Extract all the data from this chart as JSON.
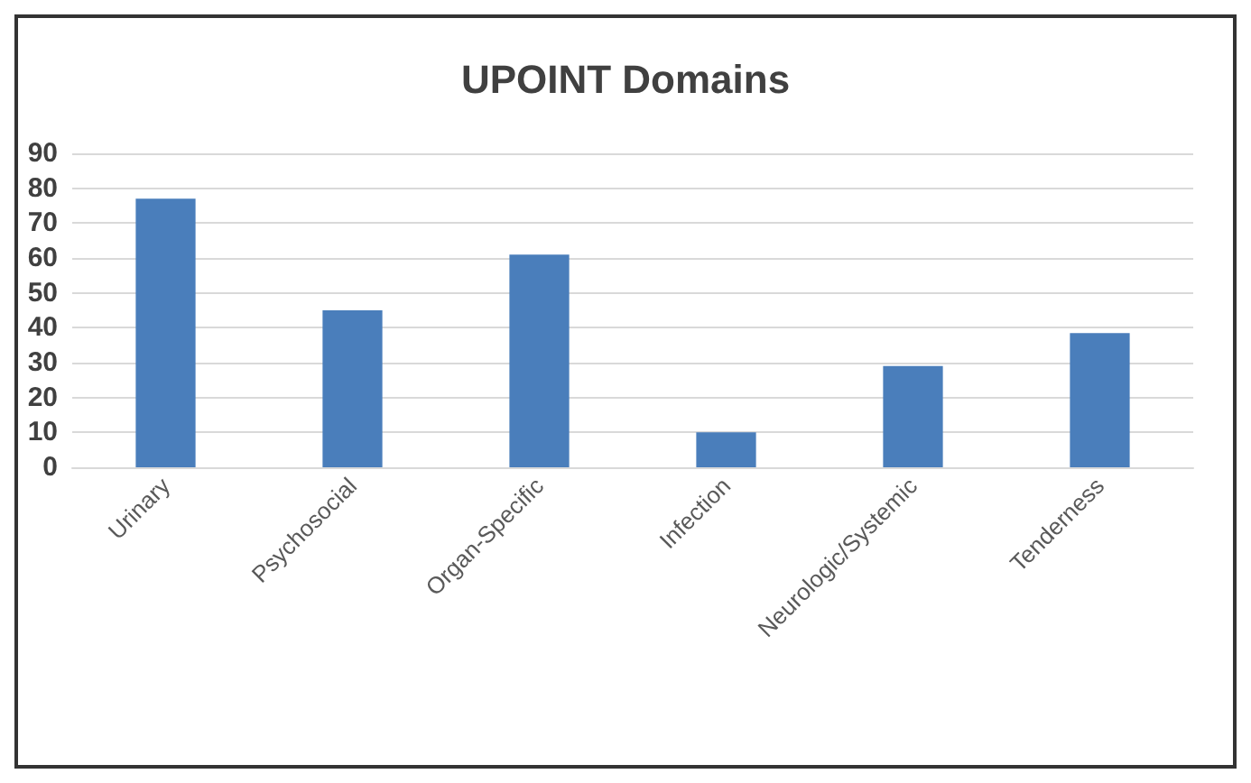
{
  "chart_data": {
    "type": "bar",
    "title": "UPOINT Domains",
    "categories": [
      "Urinary",
      "Psychosocial",
      "Organ-Specific",
      "Infection",
      "Neurologic/Systemic",
      "Tenderness"
    ],
    "values": [
      77,
      45,
      61,
      10,
      29,
      38.5
    ],
    "color": "#4a7ebb",
    "ylim": [
      0,
      90
    ],
    "yticks": [
      0,
      10,
      20,
      30,
      40,
      50,
      60,
      70,
      80,
      90
    ],
    "grid": "y"
  }
}
